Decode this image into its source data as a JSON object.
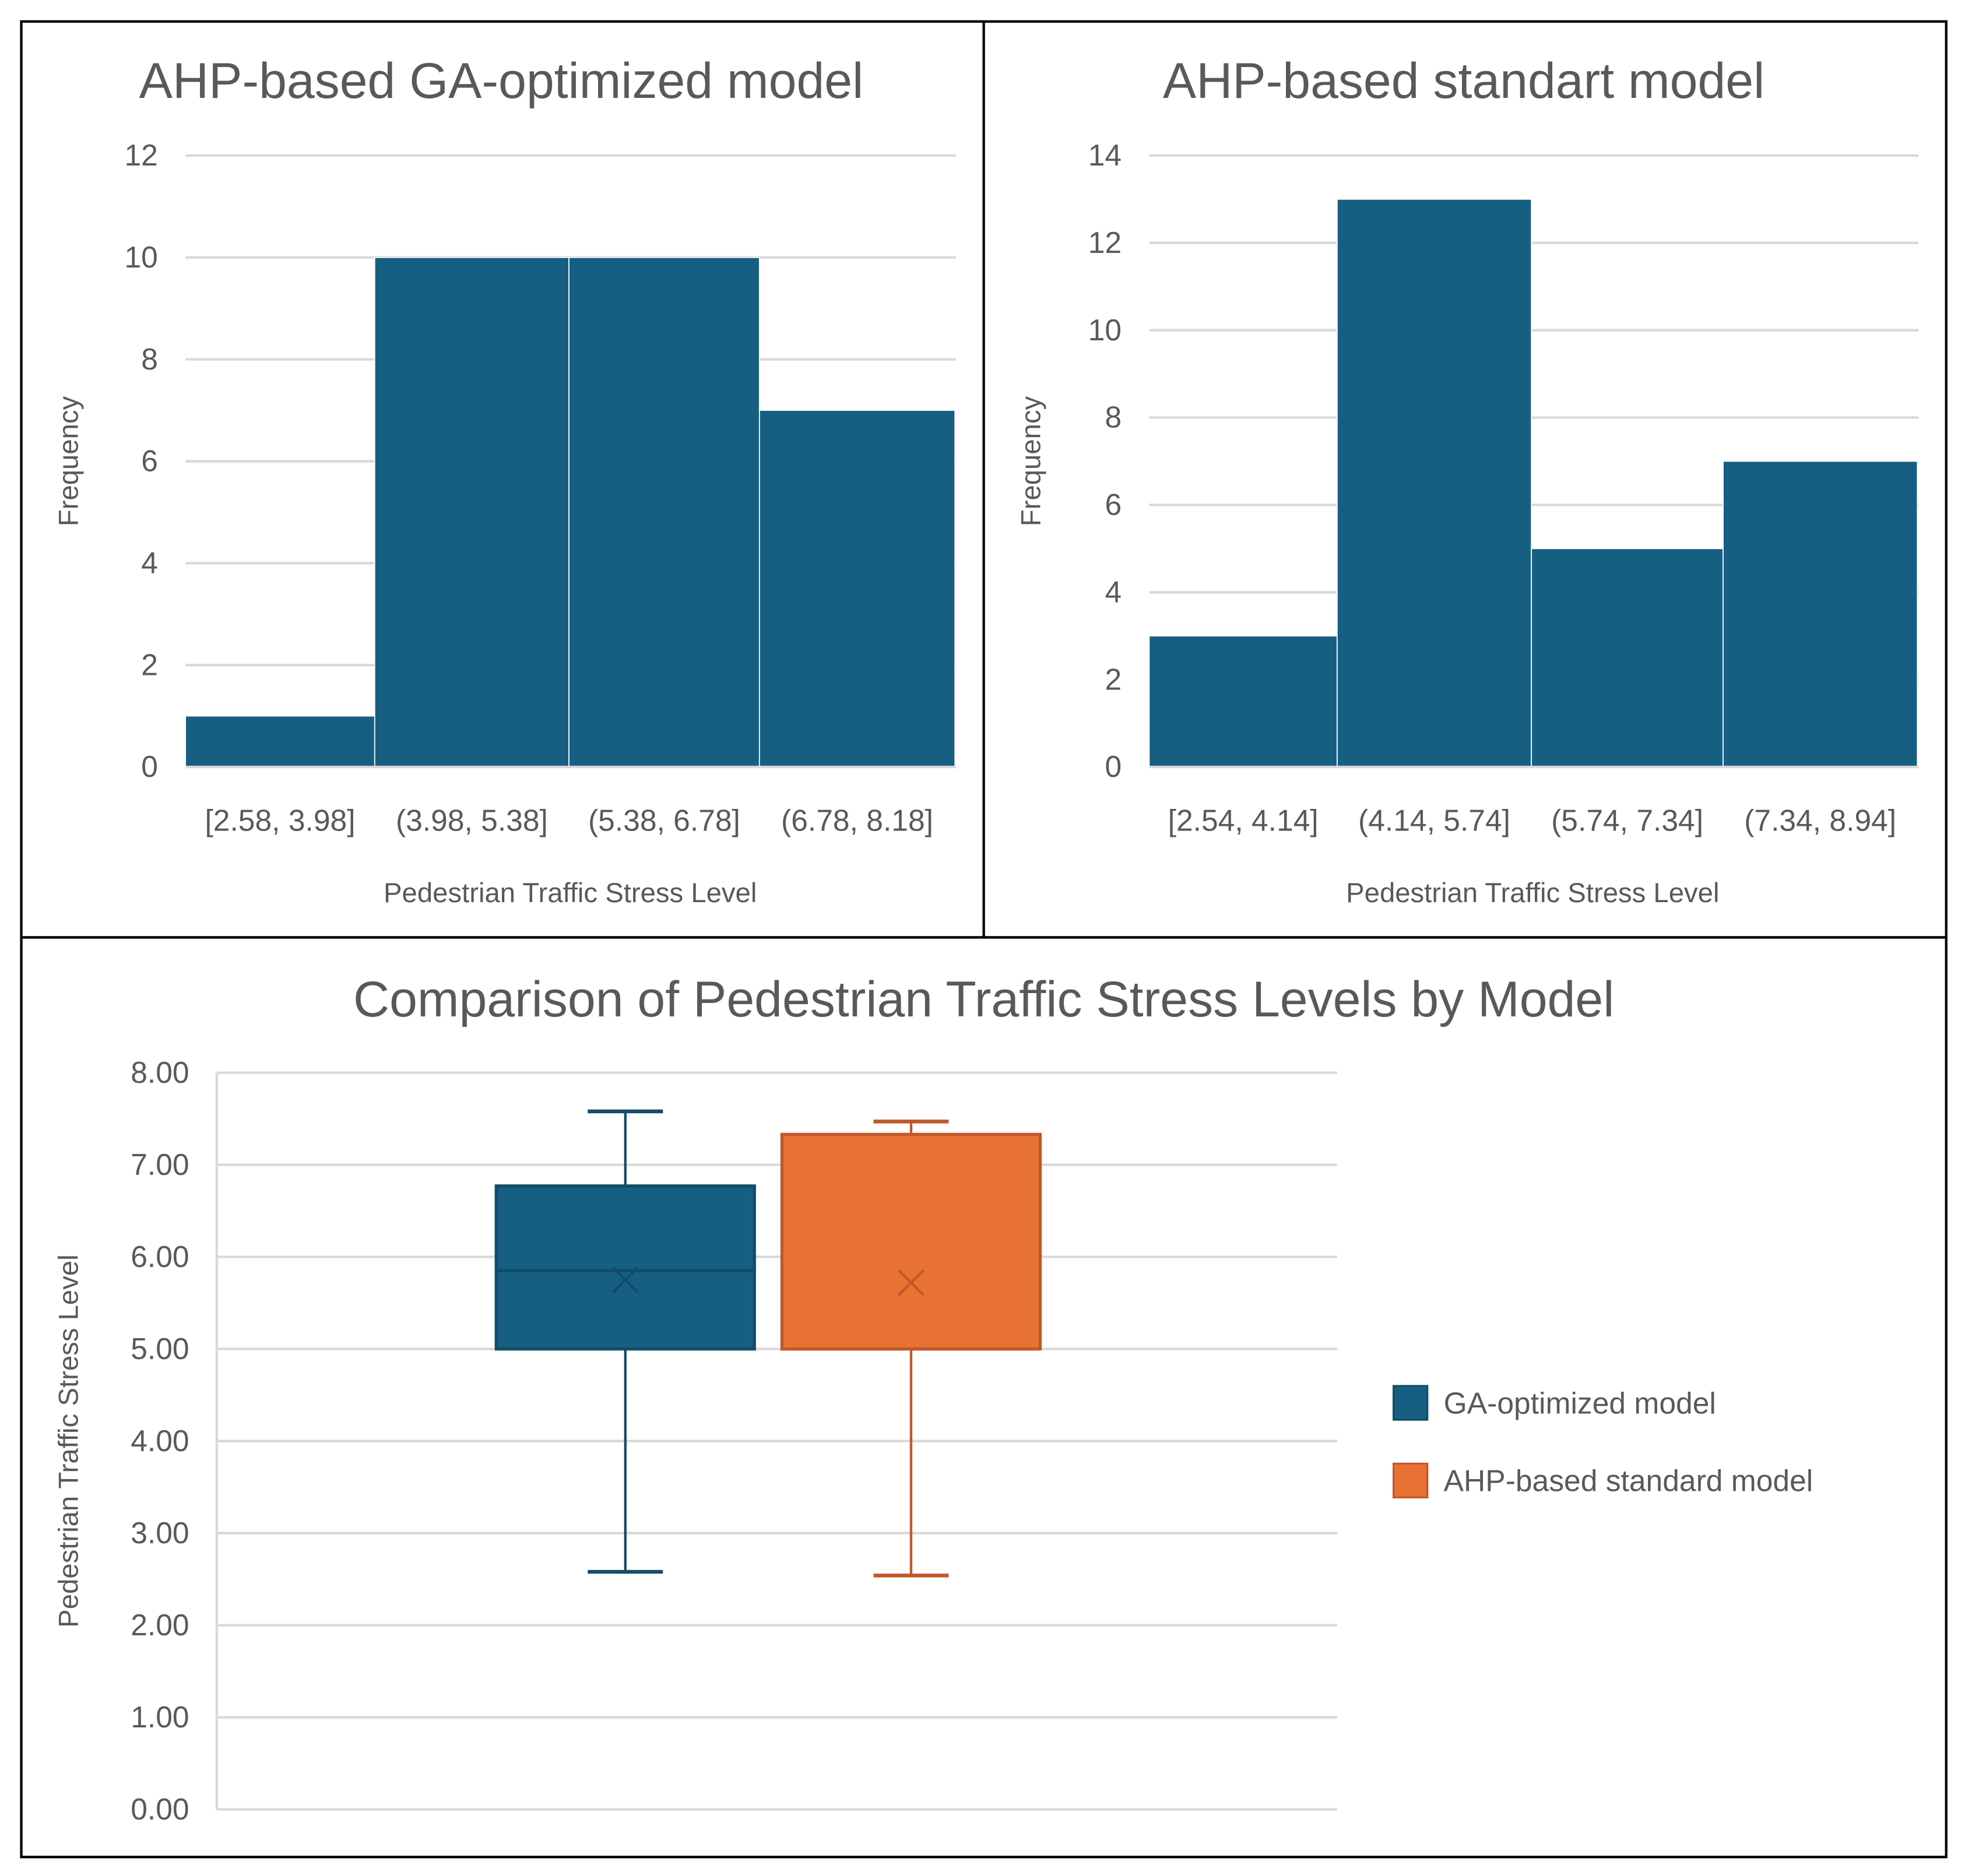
{
  "colors": {
    "blue": "#175f82",
    "blue_edge": "#124c68",
    "orange": "#e87234",
    "orange_edge": "#c0582a",
    "grid": "#d9d9d9",
    "border": "#000000"
  },
  "chart_data": [
    {
      "type": "bar",
      "title": "AHP-based GA-optimized model",
      "xlabel": "Pedestrian Traffic Stress Level",
      "ylabel": "Frequency",
      "categories": [
        "[2.58, 3.98]",
        "(3.98, 5.38]",
        "(5.38, 6.78]",
        "(6.78, 8.18]"
      ],
      "values": [
        1,
        10,
        10,
        7
      ],
      "ylim": [
        0,
        12
      ],
      "yticks": [
        0,
        2,
        4,
        6,
        8,
        10,
        12
      ],
      "grid": true
    },
    {
      "type": "bar",
      "title": "AHP-based standart model",
      "xlabel": "Pedestrian Traffic Stress Level",
      "ylabel": "Frequency",
      "categories": [
        "[2.54, 4.14]",
        "(4.14, 5.74]",
        "(5.74, 7.34]",
        "(7.34, 8.94]"
      ],
      "values": [
        3,
        13,
        5,
        7
      ],
      "ylim": [
        0,
        14
      ],
      "yticks": [
        0,
        2,
        4,
        6,
        8,
        10,
        12,
        14
      ],
      "grid": true
    },
    {
      "type": "box",
      "title": "Comparison of Pedestrian Traffic Stress Levels by Model",
      "ylabel": "Pedestrian Traffic Stress Level",
      "ylim": [
        0,
        8
      ],
      "yticks": [
        "0.00",
        "1.00",
        "2.00",
        "3.00",
        "4.00",
        "5.00",
        "6.00",
        "7.00",
        "8.00"
      ],
      "legend_position": "right",
      "series": [
        {
          "name": "GA-optimized model",
          "min": 2.58,
          "q1": 5.0,
          "median": 5.85,
          "mean": 5.75,
          "q3": 6.77,
          "max": 7.58
        },
        {
          "name": "AHP-based standard model",
          "min": 2.54,
          "q1": 5.0,
          "median": 5.0,
          "mean": 5.72,
          "q3": 7.33,
          "max": 7.47
        }
      ]
    }
  ]
}
